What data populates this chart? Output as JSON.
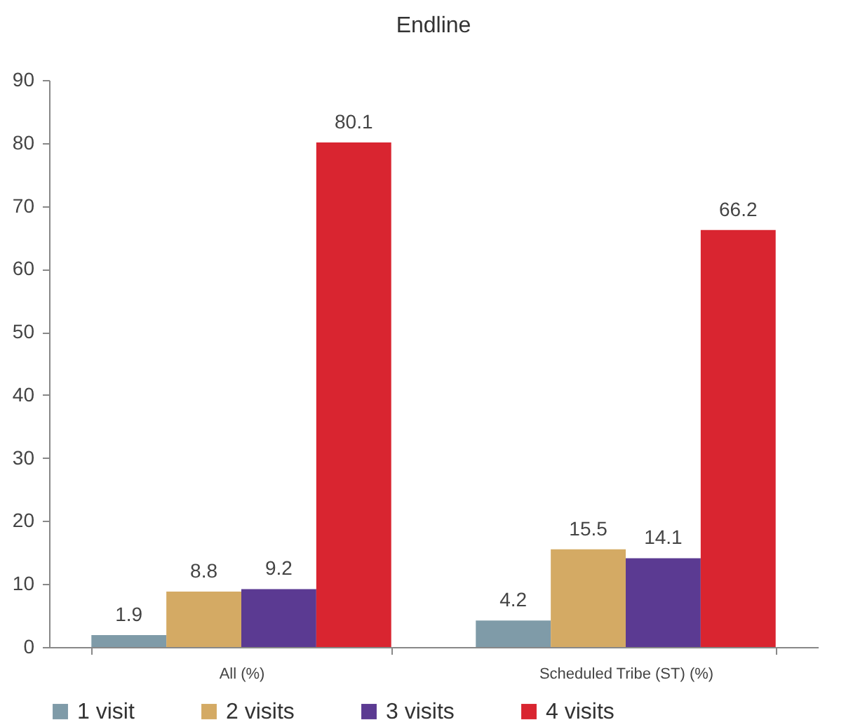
{
  "chart_data": {
    "type": "bar",
    "title": "Endline",
    "categories": [
      "All (%)",
      "Scheduled Tribe (ST) (%)"
    ],
    "series": [
      {
        "name": "1 visit",
        "color": "#7f9ba8",
        "values": [
          1.9,
          4.2
        ]
      },
      {
        "name": "2 visits",
        "color": "#d4aa64",
        "values": [
          8.8,
          15.5
        ]
      },
      {
        "name": "3 visits",
        "color": "#5b3a92",
        "values": [
          9.2,
          14.1
        ]
      },
      {
        "name": "4 visits",
        "color": "#d92530",
        "values": [
          80.1,
          66.2
        ]
      }
    ],
    "ylim": [
      0,
      90
    ],
    "yticks": [
      0,
      10,
      20,
      30,
      40,
      50,
      60,
      70,
      80,
      90
    ],
    "grid": false,
    "legend": "bottom",
    "data_labels": true
  }
}
